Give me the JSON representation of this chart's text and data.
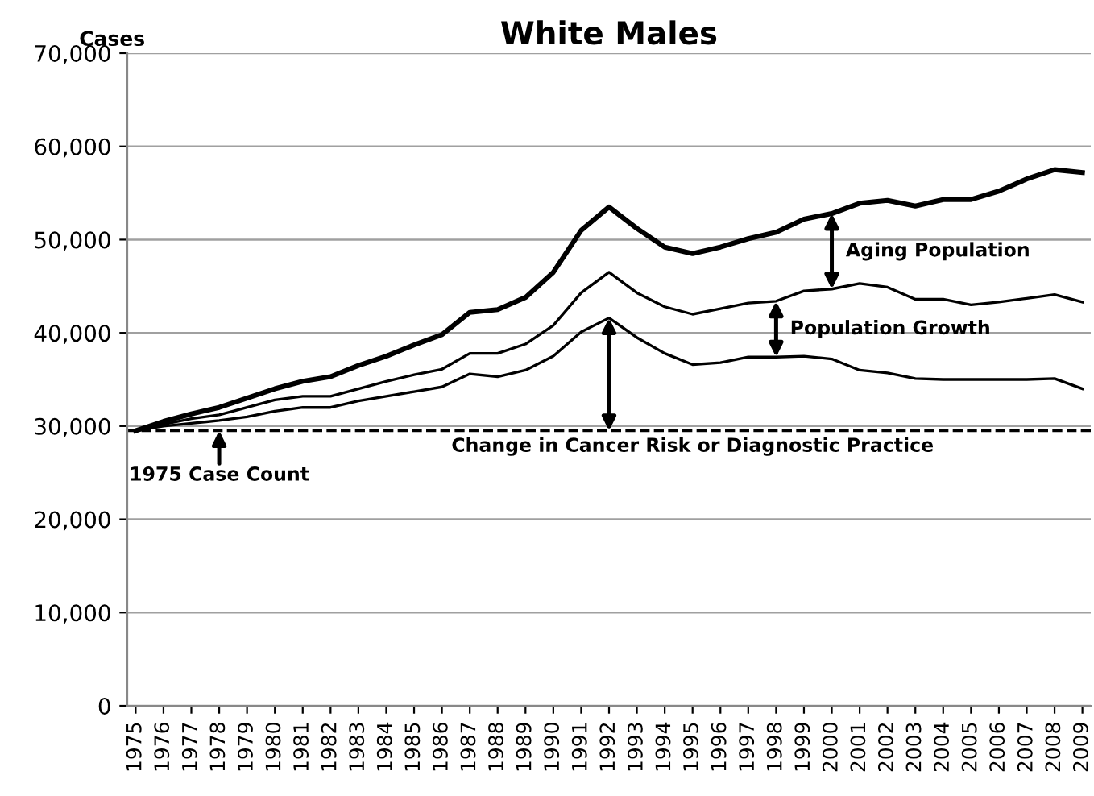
{
  "chart_data": {
    "type": "line",
    "title": "White Males",
    "ylabel": "Cases",
    "categories": [
      "1975",
      "1976",
      "1977",
      "1978",
      "1979",
      "1980",
      "1981",
      "1982",
      "1983",
      "1984",
      "1985",
      "1986",
      "1987",
      "1988",
      "1989",
      "1990",
      "1991",
      "1992",
      "1993",
      "1994",
      "1995",
      "1996",
      "1997",
      "1998",
      "1999",
      "2000",
      "2001",
      "2002",
      "2003",
      "2004",
      "2005",
      "2006",
      "2007",
      "2008",
      "2009"
    ],
    "series": [
      {
        "color": "#000000",
        "values": [
          29500,
          30500,
          31300,
          32000,
          33000,
          34000,
          34800,
          35300,
          36500,
          37500,
          38700,
          39800,
          42200,
          42500,
          43800,
          46500,
          51000,
          53500,
          51200,
          49200,
          48500,
          49200,
          50100,
          50800,
          52200,
          52800,
          53900,
          54200,
          53600,
          54300,
          54300,
          55200,
          56500,
          57500,
          57200
        ]
      },
      {
        "color": "#000000",
        "values": [
          29500,
          30200,
          30800,
          31200,
          32000,
          32800,
          33200,
          33200,
          34000,
          34800,
          35500,
          36100,
          37800,
          37800,
          38800,
          40800,
          44300,
          46500,
          44300,
          42800,
          42000,
          42600,
          43200,
          43400,
          44500,
          44700,
          45300,
          44900,
          43600,
          43600,
          43000,
          43300,
          43700,
          44100,
          43300
        ]
      },
      {
        "color": "#000000",
        "values": [
          29500,
          30000,
          30300,
          30600,
          31000,
          31600,
          32000,
          32000,
          32700,
          33200,
          33700,
          34200,
          35600,
          35300,
          36000,
          37500,
          40100,
          41600,
          39500,
          37800,
          36600,
          36800,
          37400,
          37400,
          37500,
          37200,
          36000,
          35700,
          35100,
          35000,
          35000,
          35000,
          35000,
          35100,
          34000
        ]
      }
    ],
    "ylim": [
      0,
      70000
    ],
    "yticks": [
      {
        "value": 0,
        "label": "0"
      },
      {
        "value": 10000,
        "label": "10,000"
      },
      {
        "value": 20000,
        "label": "20,000"
      },
      {
        "value": 30000,
        "label": "30,000"
      },
      {
        "value": 40000,
        "label": "40,000"
      },
      {
        "value": 50000,
        "label": "50,000"
      },
      {
        "value": 60000,
        "label": "60,000"
      },
      {
        "value": 70000,
        "label": "70,000"
      }
    ],
    "grid": "y",
    "legend": false,
    "marker": "none",
    "ref_lines": [
      {
        "axis": "y",
        "value": 29500,
        "color": "#000000",
        "line_style": "dashed"
      }
    ],
    "annotations": [
      {
        "text": "Aging Population",
        "x": "2000",
        "y": 52800
      },
      {
        "text": "Population Growth",
        "x": "1998",
        "y": 43400
      },
      {
        "text": "Change in Cancer Risk or Diagnostic Practice",
        "x": "1992",
        "y": 41600
      },
      {
        "text": "1975 Case Count",
        "x": "1978",
        "y": 29500
      }
    ]
  }
}
